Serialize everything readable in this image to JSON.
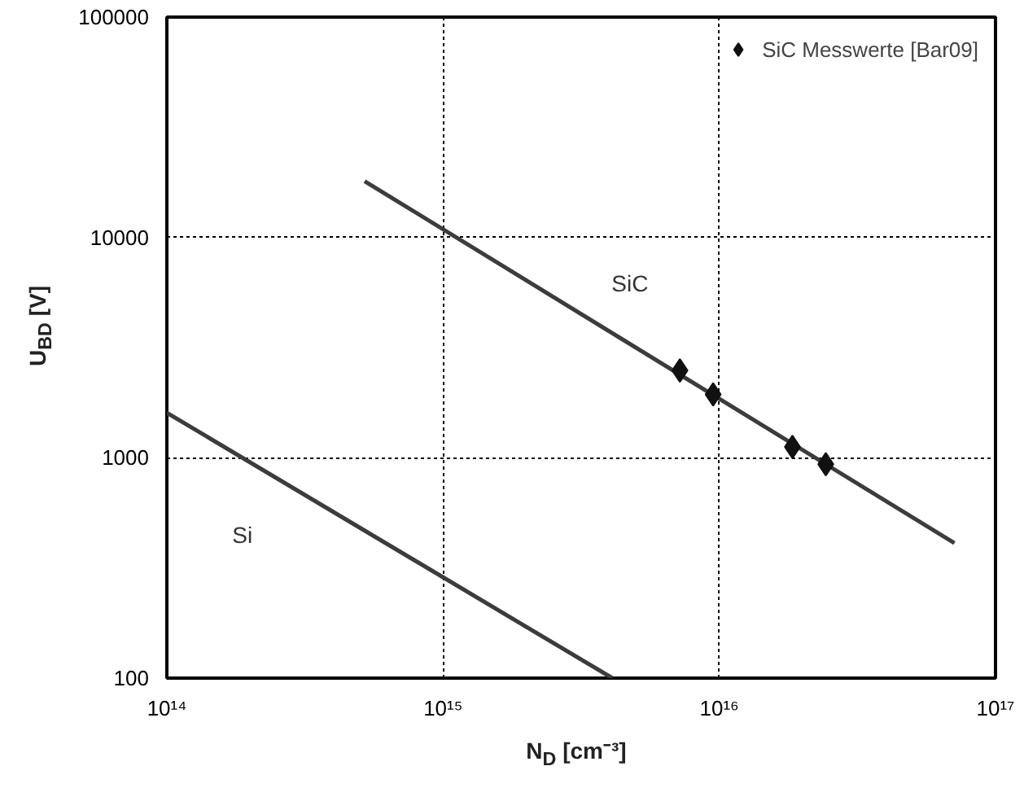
{
  "chart_data": {
    "type": "line",
    "xlabel": "N$_{D}$ [cm⁻³]",
    "ylabel": "U$_{BD}$ [V]",
    "log": "xy",
    "xlim": [
      100000000000000.0,
      1e+17
    ],
    "ylim": [
      100,
      100000
    ],
    "xticks": [
      {
        "value": 100000000000000.0,
        "label": "10¹⁴"
      },
      {
        "value": 1000000000000000.0,
        "label": "10¹⁵"
      },
      {
        "value": 1e+16,
        "label": "10¹⁶"
      },
      {
        "value": 1e+17,
        "label": "10¹⁷"
      }
    ],
    "yticks": [
      100,
      1000,
      10000,
      100000
    ],
    "grid": true,
    "legend": "top right",
    "series": [
      {
        "name": "SiC",
        "color": "#3c3c3c",
        "x": [
          520000000000000.0,
          7.1e+16
        ],
        "values": [
          18000,
          410
        ]
      },
      {
        "name": "Si",
        "color": "#3c3c3c",
        "x": [
          100000000000000.0,
          4100000000000000.0
        ],
        "values": [
          1600,
          100
        ]
      },
      {
        "type": "scatter",
        "name": "SiC Messwerte [Bar09]",
        "color": "#111111",
        "marker": "diamond",
        "x": [
          7200000000000000.0,
          9500000000000000.0,
          1.84e+16,
          2.43e+16
        ],
        "values": [
          2490,
          1940,
          1120,
          935
        ]
      }
    ]
  }
}
